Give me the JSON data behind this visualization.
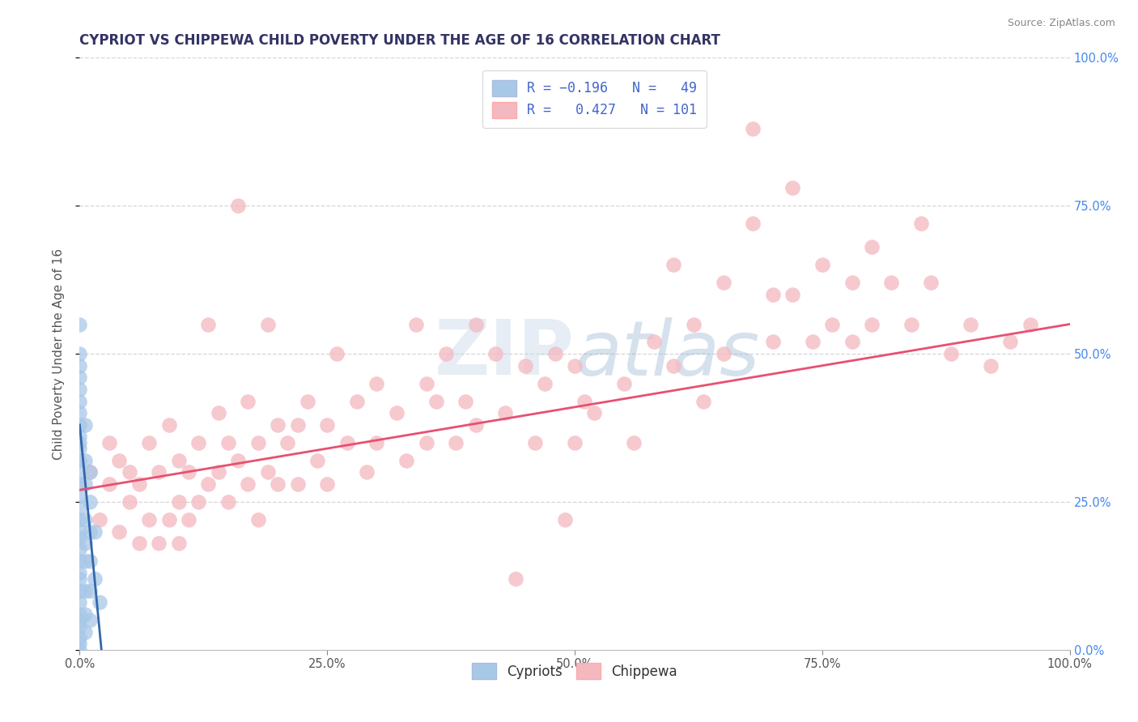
{
  "title": "CYPRIOT VS CHIPPEWA CHILD POVERTY UNDER THE AGE OF 16 CORRELATION CHART",
  "source_text": "Source: ZipAtlas.com",
  "ylabel": "Child Poverty Under the Age of 16",
  "xlim": [
    0,
    1.0
  ],
  "ylim": [
    0,
    1.0
  ],
  "xtick_vals": [
    0.0,
    0.25,
    0.5,
    0.75,
    1.0
  ],
  "ytick_vals": [
    0.0,
    0.25,
    0.5,
    0.75,
    1.0
  ],
  "cypriot_color": "#A8C8E8",
  "chippewa_color": "#F4B8C0",
  "cypriot_line_color": "#3366AA",
  "chippewa_line_color": "#E85070",
  "background_color": "#FFFFFF",
  "grid_color": "#CCCCCC",
  "title_color": "#333366",
  "axis_label_color": "#555555",
  "right_tick_color": "#4488EE",
  "cypriot_points": [
    [
      0.0,
      0.55
    ],
    [
      0.0,
      0.5
    ],
    [
      0.0,
      0.48
    ],
    [
      0.0,
      0.46
    ],
    [
      0.0,
      0.44
    ],
    [
      0.0,
      0.42
    ],
    [
      0.0,
      0.4
    ],
    [
      0.0,
      0.38
    ],
    [
      0.0,
      0.36
    ],
    [
      0.0,
      0.35
    ],
    [
      0.0,
      0.34
    ],
    [
      0.0,
      0.32
    ],
    [
      0.0,
      0.3
    ],
    [
      0.0,
      0.28
    ],
    [
      0.0,
      0.26
    ],
    [
      0.0,
      0.24
    ],
    [
      0.0,
      0.22
    ],
    [
      0.0,
      0.2
    ],
    [
      0.0,
      0.19
    ],
    [
      0.0,
      0.17
    ],
    [
      0.0,
      0.15
    ],
    [
      0.0,
      0.13
    ],
    [
      0.0,
      0.12
    ],
    [
      0.0,
      0.1
    ],
    [
      0.0,
      0.08
    ],
    [
      0.0,
      0.06
    ],
    [
      0.0,
      0.05
    ],
    [
      0.0,
      0.04
    ],
    [
      0.0,
      0.02
    ],
    [
      0.0,
      0.01
    ],
    [
      0.0,
      0.0
    ],
    [
      0.005,
      0.38
    ],
    [
      0.005,
      0.32
    ],
    [
      0.005,
      0.28
    ],
    [
      0.005,
      0.22
    ],
    [
      0.005,
      0.18
    ],
    [
      0.005,
      0.15
    ],
    [
      0.005,
      0.1
    ],
    [
      0.005,
      0.06
    ],
    [
      0.005,
      0.03
    ],
    [
      0.01,
      0.3
    ],
    [
      0.01,
      0.25
    ],
    [
      0.01,
      0.2
    ],
    [
      0.01,
      0.15
    ],
    [
      0.01,
      0.1
    ],
    [
      0.01,
      0.05
    ],
    [
      0.015,
      0.2
    ],
    [
      0.015,
      0.12
    ],
    [
      0.02,
      0.08
    ]
  ],
  "chippewa_points": [
    [
      0.01,
      0.3
    ],
    [
      0.02,
      0.22
    ],
    [
      0.03,
      0.28
    ],
    [
      0.03,
      0.35
    ],
    [
      0.04,
      0.2
    ],
    [
      0.04,
      0.32
    ],
    [
      0.05,
      0.25
    ],
    [
      0.05,
      0.3
    ],
    [
      0.06,
      0.28
    ],
    [
      0.06,
      0.18
    ],
    [
      0.07,
      0.35
    ],
    [
      0.07,
      0.22
    ],
    [
      0.08,
      0.3
    ],
    [
      0.08,
      0.18
    ],
    [
      0.09,
      0.38
    ],
    [
      0.09,
      0.22
    ],
    [
      0.1,
      0.32
    ],
    [
      0.1,
      0.25
    ],
    [
      0.1,
      0.18
    ],
    [
      0.11,
      0.3
    ],
    [
      0.11,
      0.22
    ],
    [
      0.12,
      0.35
    ],
    [
      0.12,
      0.25
    ],
    [
      0.13,
      0.55
    ],
    [
      0.13,
      0.28
    ],
    [
      0.14,
      0.4
    ],
    [
      0.14,
      0.3
    ],
    [
      0.15,
      0.35
    ],
    [
      0.15,
      0.25
    ],
    [
      0.16,
      0.75
    ],
    [
      0.16,
      0.32
    ],
    [
      0.17,
      0.42
    ],
    [
      0.17,
      0.28
    ],
    [
      0.18,
      0.35
    ],
    [
      0.18,
      0.22
    ],
    [
      0.19,
      0.55
    ],
    [
      0.19,
      0.3
    ],
    [
      0.2,
      0.38
    ],
    [
      0.2,
      0.28
    ],
    [
      0.21,
      0.35
    ],
    [
      0.22,
      0.38
    ],
    [
      0.22,
      0.28
    ],
    [
      0.23,
      0.42
    ],
    [
      0.24,
      0.32
    ],
    [
      0.25,
      0.38
    ],
    [
      0.25,
      0.28
    ],
    [
      0.26,
      0.5
    ],
    [
      0.27,
      0.35
    ],
    [
      0.28,
      0.42
    ],
    [
      0.29,
      0.3
    ],
    [
      0.3,
      0.45
    ],
    [
      0.3,
      0.35
    ],
    [
      0.32,
      0.4
    ],
    [
      0.33,
      0.32
    ],
    [
      0.34,
      0.55
    ],
    [
      0.35,
      0.45
    ],
    [
      0.35,
      0.35
    ],
    [
      0.36,
      0.42
    ],
    [
      0.37,
      0.5
    ],
    [
      0.38,
      0.35
    ],
    [
      0.39,
      0.42
    ],
    [
      0.4,
      0.55
    ],
    [
      0.4,
      0.38
    ],
    [
      0.42,
      0.5
    ],
    [
      0.43,
      0.4
    ],
    [
      0.44,
      0.12
    ],
    [
      0.45,
      0.48
    ],
    [
      0.46,
      0.35
    ],
    [
      0.47,
      0.45
    ],
    [
      0.48,
      0.5
    ],
    [
      0.49,
      0.22
    ],
    [
      0.5,
      0.48
    ],
    [
      0.5,
      0.35
    ],
    [
      0.51,
      0.42
    ],
    [
      0.52,
      0.4
    ],
    [
      0.55,
      0.45
    ],
    [
      0.56,
      0.35
    ],
    [
      0.58,
      0.52
    ],
    [
      0.6,
      0.65
    ],
    [
      0.6,
      0.48
    ],
    [
      0.62,
      0.55
    ],
    [
      0.63,
      0.42
    ],
    [
      0.65,
      0.62
    ],
    [
      0.65,
      0.5
    ],
    [
      0.68,
      0.88
    ],
    [
      0.68,
      0.72
    ],
    [
      0.7,
      0.6
    ],
    [
      0.7,
      0.52
    ],
    [
      0.72,
      0.78
    ],
    [
      0.72,
      0.6
    ],
    [
      0.74,
      0.52
    ],
    [
      0.75,
      0.65
    ],
    [
      0.76,
      0.55
    ],
    [
      0.78,
      0.62
    ],
    [
      0.78,
      0.52
    ],
    [
      0.8,
      0.68
    ],
    [
      0.8,
      0.55
    ],
    [
      0.82,
      0.62
    ],
    [
      0.84,
      0.55
    ],
    [
      0.85,
      0.72
    ],
    [
      0.86,
      0.62
    ],
    [
      0.88,
      0.5
    ],
    [
      0.9,
      0.55
    ],
    [
      0.92,
      0.48
    ],
    [
      0.94,
      0.52
    ],
    [
      0.96,
      0.55
    ]
  ],
  "title_fontsize": 12,
  "axis_fontsize": 11,
  "tick_fontsize": 10.5,
  "legend_fontsize": 12,
  "marker_size": 180,
  "cypriot_line_start_x": 0.0,
  "cypriot_line_end_x": 0.022,
  "chippewa_line_start_x": 0.0,
  "chippewa_line_end_x": 1.0,
  "cypriot_line_start_y": 0.38,
  "cypriot_line_end_y": 0.0,
  "chippewa_line_start_y": 0.27,
  "chippewa_line_end_y": 0.55
}
